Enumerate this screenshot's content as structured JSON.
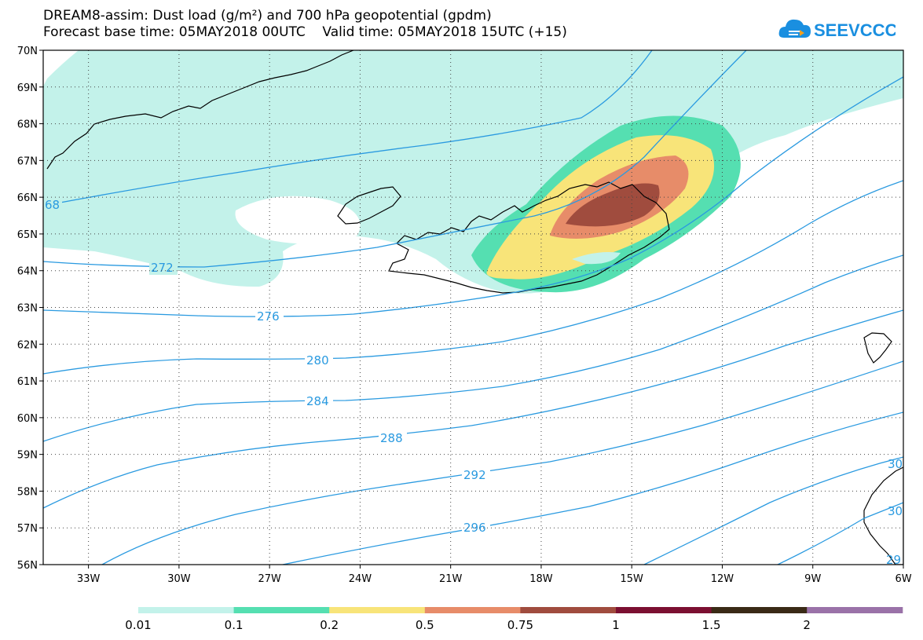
{
  "header": {
    "title_line1": "DREAM8-assim: Dust load (g/m²) and 700 hPa geopotential (gpdm)",
    "title_line2": "Forecast base time: 05MAY2018 00UTC    Valid time: 05MAY2018 15UTC (+15)",
    "logo_text": "SEEVCCC",
    "logo_icon": "cloud-icon"
  },
  "map": {
    "lon_range": [
      -34.5,
      -6
    ],
    "lat_range": [
      56,
      70
    ],
    "lat_ticks": [
      "70N",
      "69N",
      "68N",
      "67N",
      "66N",
      "65N",
      "64N",
      "63N",
      "62N",
      "61N",
      "60N",
      "59N",
      "58N",
      "57N",
      "56N"
    ],
    "lon_ticks": [
      "33W",
      "30W",
      "27W",
      "24W",
      "21W",
      "18W",
      "15W",
      "12W",
      "9W",
      "6W"
    ],
    "contour_labels": [
      "68",
      "272",
      "276",
      "280",
      "284",
      "288",
      "292",
      "296",
      "30",
      "30",
      "29"
    ],
    "colors": {
      "contour": "#2a9ae0",
      "land_outline": "#000000"
    }
  },
  "legend": {
    "labels": [
      "0.01",
      "0.1",
      "0.2",
      "0.5",
      "0.75",
      "1",
      "1.5",
      "2"
    ],
    "colors": [
      "#c3f2ea",
      "#55dfb1",
      "#f8e479",
      "#e78c69",
      "#a04c3e",
      "#7b0f31",
      "#3a2a16",
      "#9a72a8"
    ]
  }
}
